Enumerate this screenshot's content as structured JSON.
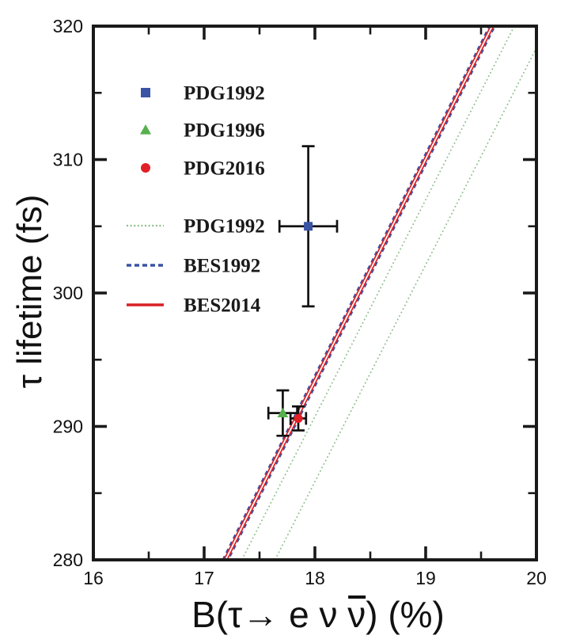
{
  "figure": {
    "background": "#ffffff",
    "ylabel": "τ lifetime (fs)",
    "xlabel_parts": {
      "p1": "B(τ→ e ν ",
      "nubar": "ν",
      "p2": ") (%)"
    }
  },
  "chart_data": {
    "type": "scatter",
    "title": "",
    "xlabel": "B(τ→ e ν ν̄) (%)",
    "ylabel": "τ lifetime (fs)",
    "xlim": [
      16,
      20
    ],
    "ylim": [
      280,
      320
    ],
    "grid": false,
    "frame": "box-with-mirrored-ticks",
    "axis_color": "#1a1a1a",
    "xticks": {
      "major": [
        16,
        17,
        18,
        19,
        20
      ],
      "labels": [
        "16",
        "17",
        "18",
        "19",
        "20"
      ],
      "minor": [
        16.5,
        17.5,
        18.5,
        19.5
      ]
    },
    "yticks": {
      "major": [
        280,
        290,
        300,
        310,
        320
      ],
      "labels": [
        "280",
        "290",
        "300",
        "310",
        "320"
      ],
      "minor": [
        285,
        295,
        305,
        315
      ]
    },
    "points": [
      {
        "label": "PDG1992",
        "marker": "square",
        "color": "#3A53A4",
        "x": 17.94,
        "y": 305.0,
        "xerr": 0.26,
        "yerr": 6.0
      },
      {
        "label": "PDG1996",
        "marker": "triangle",
        "color": "#56B14E",
        "x": 17.71,
        "y": 291.0,
        "xerr": 0.13,
        "yerr": 1.7
      },
      {
        "label": "PDG2016",
        "marker": "circle",
        "color": "#E11F26",
        "x": 17.85,
        "y": 290.6,
        "xerr": 0.07,
        "yerr": 0.9
      }
    ],
    "lines": [
      {
        "name": "PDG1992",
        "style": "dotted",
        "color": "#8CBE8C",
        "width": 1.7,
        "segments": [
          {
            "x_at_y280": 17.34,
            "x_at_y320": 19.8
          },
          {
            "x_at_y280": 17.64,
            "x_at_y320": 20.1
          }
        ]
      },
      {
        "name": "BES1992",
        "style": "dashed",
        "color": "#3A53A4",
        "width": 2.3,
        "segments": [
          {
            "x_at_y280": 17.168,
            "x_at_y320": 19.575
          },
          {
            "x_at_y280": 17.218,
            "x_at_y320": 19.625
          }
        ]
      },
      {
        "name": "BES2014",
        "style": "solid",
        "color": "#D92026",
        "width": 1.7,
        "segments": [
          {
            "x_at_y280": 17.179,
            "x_at_y320": 19.586
          },
          {
            "x_at_y280": 17.207,
            "x_at_y320": 19.614
          }
        ]
      }
    ],
    "legend": {
      "position": "upper-left-inside",
      "entries": [
        {
          "label": "PDG1992",
          "sample": "square",
          "color": "#3A53A4"
        },
        {
          "label": "PDG1996",
          "sample": "triangle",
          "color": "#56B14E"
        },
        {
          "label": "PDG2016",
          "sample": "circle",
          "color": "#E11F26"
        },
        {
          "label": "PDG1992",
          "sample": "dotted-line",
          "color": "#8CBE8C"
        },
        {
          "label": "BES1992",
          "sample": "dashed-line",
          "color": "#3A53A4"
        },
        {
          "label": "BES2014",
          "sample": "solid-line",
          "color": "#D92026"
        }
      ]
    }
  }
}
